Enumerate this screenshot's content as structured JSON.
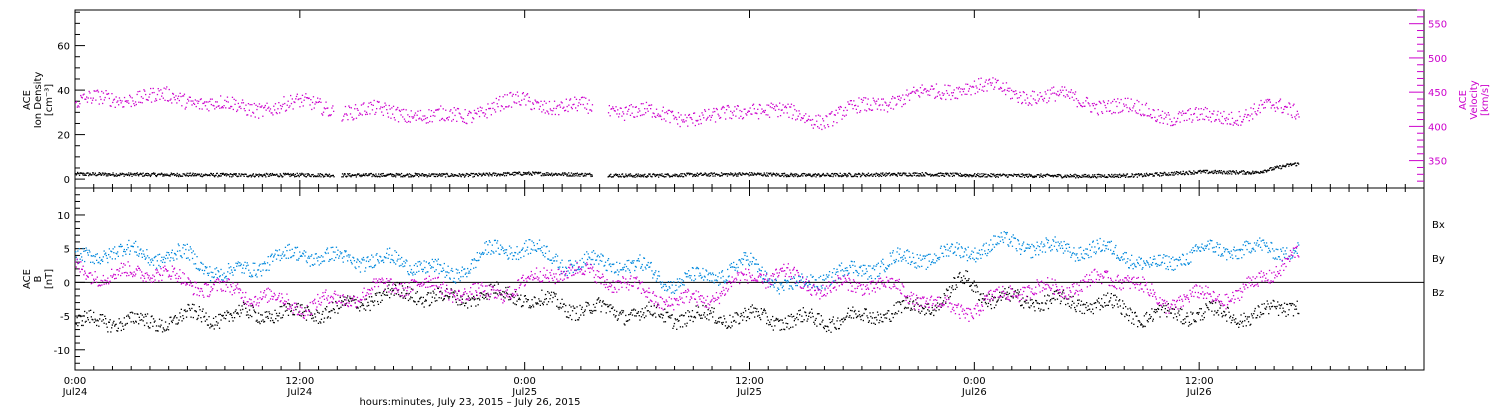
{
  "colors": {
    "density": "#000000",
    "velocity": "#cc00cc",
    "bx": "#000000",
    "by": "#0088dd",
    "bz": "#cc00cc"
  },
  "xaxis": {
    "label": "hours:minutes, July 23, 2015 – July 26, 2015",
    "range_hours": [
      0,
      72
    ],
    "ticks": [
      {
        "hour": 0,
        "time": "0:00",
        "date": "Jul24"
      },
      {
        "hour": 12,
        "time": "12:00",
        "date": "Jul24"
      },
      {
        "hour": 24,
        "time": "0:00",
        "date": "Jul25"
      },
      {
        "hour": 36,
        "time": "12:00",
        "date": "Jul25"
      },
      {
        "hour": 48,
        "time": "0:00",
        "date": "Jul26"
      },
      {
        "hour": 60,
        "time": "12:00",
        "date": "Jul26"
      }
    ]
  },
  "chart_data": [
    {
      "type": "scatter",
      "panel": "plasma",
      "ylabel_left": [
        "ACE",
        "Ion Density",
        "[cm⁻³]"
      ],
      "ylabel_right": [
        "ACE",
        "Velocity",
        "[km/s]"
      ],
      "ylim_left": [
        -4,
        76
      ],
      "yticks_left": [
        "0",
        "20",
        "40",
        "60"
      ],
      "ylim_right": [
        310,
        570
      ],
      "yticks_right": [
        "350",
        "400",
        "450",
        "500",
        "550"
      ],
      "data_end_hour": 65.3,
      "gaps_hours": [
        [
          13.8,
          14.2
        ],
        [
          27.6,
          28.4
        ]
      ],
      "series": [
        {
          "name": "Ion Density",
          "axis": "left",
          "x": [
            0,
            3,
            6,
            9,
            12,
            15,
            18,
            21,
            24,
            27,
            30,
            33,
            36,
            39,
            42,
            45,
            48,
            51,
            54,
            57,
            60,
            63,
            65
          ],
          "y": [
            2.5,
            2.3,
            2.2,
            2.0,
            2.1,
            2.0,
            2.1,
            2.0,
            2.8,
            2.3,
            1.8,
            2.2,
            2.5,
            2.0,
            2.2,
            2.5,
            2.0,
            1.8,
            1.6,
            2.0,
            3.5,
            3.2,
            7.0
          ]
        },
        {
          "name": "Velocity",
          "axis": "right",
          "x": [
            0,
            1.5,
            3,
            5,
            7,
            9,
            11,
            13,
            15,
            17,
            19,
            21,
            23,
            24,
            26,
            28,
            30,
            32,
            34,
            36,
            38,
            40,
            42,
            44,
            46,
            47.5,
            50,
            52,
            54,
            56,
            58,
            60,
            62,
            64,
            65.3
          ],
          "y": [
            435,
            440,
            445,
            442,
            438,
            425,
            433,
            432,
            420,
            425,
            412,
            420,
            432,
            440,
            427,
            428,
            420,
            418,
            410,
            430,
            418,
            412,
            428,
            442,
            450,
            462,
            450,
            445,
            437,
            428,
            418,
            412,
            418,
            428,
            425
          ]
        }
      ]
    },
    {
      "type": "scatter",
      "panel": "magnetic-field",
      "ylabel_left": [
        "ACE",
        "B",
        "[nT]"
      ],
      "ylim": [
        -13,
        14
      ],
      "yticks": [
        "-10",
        "-5",
        "0",
        "5",
        "10"
      ],
      "data_end_hour": 65.3,
      "legend": [
        "Bx",
        "By",
        "Bz"
      ],
      "series": [
        {
          "name": "Bx",
          "x": [
            0,
            2,
            4,
            6,
            8,
            10,
            12,
            14,
            16,
            18,
            20,
            22,
            24,
            26,
            28,
            30,
            32,
            34,
            36,
            38,
            40,
            42,
            44,
            46,
            47.5,
            49,
            51,
            53,
            55,
            57,
            59,
            61,
            63,
            65
          ],
          "y": [
            -6,
            -5.5,
            -6,
            -5,
            -5,
            -4.5,
            -4.5,
            -4,
            -2,
            -1.5,
            -2.5,
            -1.5,
            -2,
            -3.5,
            -4,
            -4.5,
            -5,
            -5,
            -5,
            -5.5,
            -5.5,
            -5,
            -4,
            -3,
            0.5,
            -2.5,
            -2.5,
            -3,
            -3,
            -5,
            -4.5,
            -4.5,
            -5,
            -3
          ]
        },
        {
          "name": "By",
          "x": [
            0,
            2,
            4,
            6,
            8,
            10,
            12,
            14,
            16,
            18,
            20,
            22,
            24,
            26,
            28,
            30,
            32,
            34,
            36,
            38,
            40,
            42,
            44,
            46,
            48,
            50,
            52,
            54,
            56,
            57.5,
            59,
            61,
            63,
            65
          ],
          "y": [
            3,
            5,
            4,
            4,
            1,
            3,
            4.5,
            3.5,
            3.5,
            3,
            1,
            4.5,
            5.5,
            3,
            3,
            2.5,
            0,
            1,
            3,
            -1,
            1,
            2,
            3.5,
            4,
            5,
            6,
            5,
            5,
            4.5,
            2,
            4,
            5,
            5,
            5
          ]
        },
        {
          "name": "Bz",
          "x": [
            0,
            2,
            4,
            6,
            8,
            10,
            12,
            14,
            16,
            18,
            20,
            22,
            24,
            26,
            28,
            30,
            32,
            34,
            36,
            38,
            40,
            42,
            44,
            46,
            48,
            50,
            52,
            54,
            56,
            58,
            60,
            62,
            64,
            65
          ],
          "y": [
            2,
            1,
            2,
            0,
            -1,
            -2,
            -3.5,
            -2.5,
            -1,
            0,
            -1,
            -2,
            0,
            2,
            1,
            -1,
            -3,
            -2,
            1,
            1,
            -1,
            0,
            -1,
            -3.5,
            -4,
            -1,
            -1,
            0,
            1,
            -3,
            -2,
            -2,
            2,
            4
          ]
        }
      ]
    }
  ]
}
